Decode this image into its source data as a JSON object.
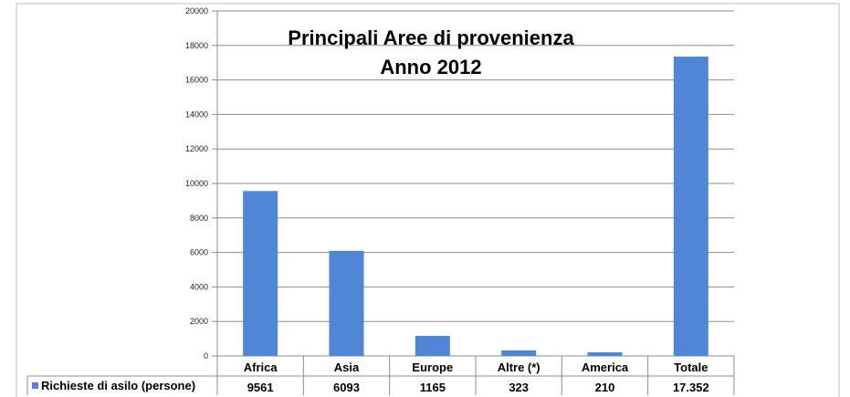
{
  "chart_data": {
    "type": "bar",
    "title": "Principali Aree di provenienza",
    "subtitle": "Anno 2012",
    "categories": [
      "Africa",
      "Asia",
      "Europe",
      "Altre (*)",
      "America",
      "Totale"
    ],
    "series": [
      {
        "name": "Richieste di asilo (persone)",
        "values": [
          9561,
          6093,
          1165,
          323,
          210,
          17352
        ],
        "labels": [
          "9561",
          "6093",
          "1165",
          "323",
          "210",
          "17.352"
        ],
        "color": "#4f86d6"
      }
    ],
    "ylim": [
      0,
      20000
    ],
    "yticks": [
      "0",
      "2000",
      "4000",
      "6000",
      "8000",
      "10000",
      "12000",
      "14000",
      "16000",
      "18000",
      "20000"
    ],
    "grid": true,
    "legend": "data-table-left"
  }
}
